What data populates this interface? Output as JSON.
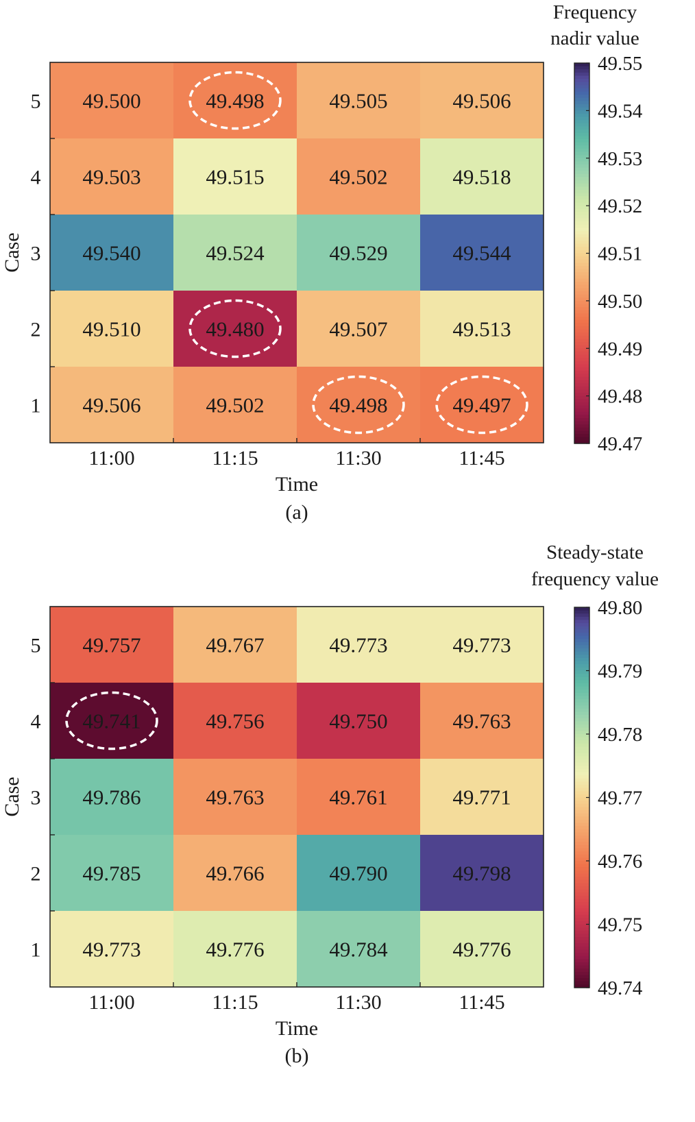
{
  "chart_data": [
    {
      "type": "heatmap",
      "panel_label": "(a)",
      "xlabel": "Time",
      "ylabel": "Case",
      "x_categories": [
        "11:00",
        "11:15",
        "11:30",
        "11:45"
      ],
      "y_categories": [
        "1",
        "2",
        "3",
        "4",
        "5"
      ],
      "values": [
        [
          49.506,
          49.502,
          49.498,
          49.497
        ],
        [
          49.51,
          49.48,
          49.507,
          49.513
        ],
        [
          49.54,
          49.524,
          49.529,
          49.544
        ],
        [
          49.503,
          49.515,
          49.502,
          49.518
        ],
        [
          49.5,
          49.498,
          49.505,
          49.506
        ]
      ],
      "value_labels": [
        [
          "49.506",
          "49.502",
          "49.498",
          "49.497"
        ],
        [
          "49.510",
          "49.480",
          "49.507",
          "49.513"
        ],
        [
          "49.540",
          "49.524",
          "49.529",
          "49.544"
        ],
        [
          "49.503",
          "49.515",
          "49.502",
          "49.518"
        ],
        [
          "49.500",
          "49.498",
          "49.505",
          "49.506"
        ]
      ],
      "highlighted_cells": [
        [
          4,
          1
        ],
        [
          1,
          1
        ],
        [
          0,
          2
        ],
        [
          0,
          3
        ]
      ],
      "colorbar": {
        "title_lines": [
          "Frequency",
          "nadir value"
        ],
        "range": [
          49.47,
          49.55
        ],
        "ticks": [
          "49.55",
          "49.54",
          "49.53",
          "49.52",
          "49.51",
          "49.50",
          "49.49",
          "49.48",
          "49.47"
        ],
        "colormap": "Spectral (red low, blue/purple high)"
      }
    },
    {
      "type": "heatmap",
      "panel_label": "(b)",
      "xlabel": "Time",
      "ylabel": "Case",
      "x_categories": [
        "11:00",
        "11:15",
        "11:30",
        "11:45"
      ],
      "y_categories": [
        "1",
        "2",
        "3",
        "4",
        "5"
      ],
      "values": [
        [
          49.773,
          49.776,
          49.784,
          49.776
        ],
        [
          49.785,
          49.766,
          49.79,
          49.798
        ],
        [
          49.786,
          49.763,
          49.761,
          49.771
        ],
        [
          49.741,
          49.756,
          49.75,
          49.763
        ],
        [
          49.757,
          49.767,
          49.773,
          49.773
        ]
      ],
      "value_labels": [
        [
          "49.773",
          "49.776",
          "49.784",
          "49.776"
        ],
        [
          "49.785",
          "49.766",
          "49.790",
          "49.798"
        ],
        [
          "49.786",
          "49.763",
          "49.761",
          "49.771"
        ],
        [
          "49.741",
          "49.756",
          "49.750",
          "49.763"
        ],
        [
          "49.757",
          "49.767",
          "49.773",
          "49.773"
        ]
      ],
      "highlighted_cells": [
        [
          3,
          0
        ]
      ],
      "colorbar": {
        "title_lines": [
          "Steady-state",
          "frequency value"
        ],
        "range": [
          49.74,
          49.8
        ],
        "ticks": [
          "49.80",
          "49.79",
          "49.78",
          "49.77",
          "49.76",
          "49.75",
          "49.74"
        ],
        "colormap": "Spectral (red low, blue/purple high)"
      }
    }
  ]
}
